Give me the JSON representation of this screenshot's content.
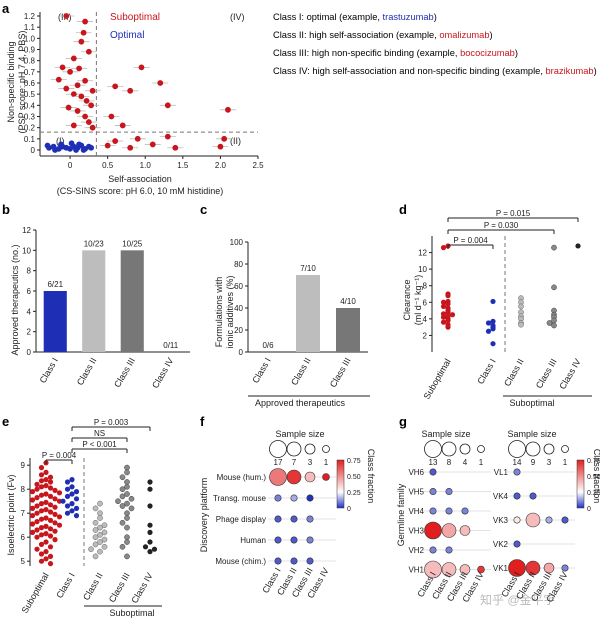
{
  "panels": {
    "a": "a",
    "b": "b",
    "c": "c",
    "d": "d",
    "e": "e",
    "f": "f",
    "g": "g"
  },
  "colors": {
    "red": "#c8161d",
    "blue": "#1f2fb5",
    "dark": "#333333",
    "mid": "#777777",
    "light": "#a8a8a8",
    "lighter": "#bdbdbd"
  },
  "legend_classes": [
    {
      "prefix": "Class I: optimal (example, ",
      "example": "trastuzumab",
      "suffix": ")",
      "color": "#1f2fb5"
    },
    {
      "prefix": "Class II: high self-association (example, ",
      "example": "omalizumab",
      "suffix": ")",
      "color": "#c8161d"
    },
    {
      "prefix": "Class III: high non-specific binding (example, ",
      "example": "bococizumab",
      "suffix": ")",
      "color": "#c8161d"
    },
    {
      "prefix": "Class IV: high self-association and non-specific binding (example, ",
      "example": "brazikumab",
      "suffix": ")",
      "color": "#c8161d"
    }
  ],
  "chart_data": [
    {
      "panel": "a",
      "type": "scatter",
      "xlabel": "Self-association",
      "xlabel2": "(CS-SINS score: pH 6.0, 10 mM histidine)",
      "ylabel": "Non-specific binding",
      "ylabel2": "(PSP score: pH 7.4, PBS)",
      "xlim": [
        -0.4,
        2.5
      ],
      "xticks": [
        "0",
        "0.5",
        "1.0",
        "1.5",
        "2.0",
        "2.5"
      ],
      "yticks": [
        "0",
        "0.1",
        "0.2",
        "0.3",
        "0.4",
        "0.5",
        "0.6",
        "0.7",
        "0.8",
        "0.9",
        "1.0",
        "1.1",
        "1.2"
      ],
      "quadrants": [
        "(I)",
        "(II)",
        "(III)",
        "(IV)"
      ],
      "series": [
        {
          "name": "Suboptimal"
        },
        {
          "name": "Optimal"
        }
      ],
      "x_threshold": 0.35,
      "y_threshold": 0.16,
      "suboptimal": [
        [
          -0.05,
          1.2
        ],
        [
          0.2,
          1.15
        ],
        [
          0.18,
          1.05
        ],
        [
          0.15,
          0.97
        ],
        [
          0.25,
          0.88
        ],
        [
          0.05,
          0.82
        ],
        [
          -0.1,
          0.74
        ],
        [
          0.12,
          0.73
        ],
        [
          0.0,
          0.7
        ],
        [
          -0.15,
          0.63
        ],
        [
          0.2,
          0.62
        ],
        [
          0.1,
          0.58
        ],
        [
          -0.05,
          0.55
        ],
        [
          0.3,
          0.53
        ],
        [
          0.05,
          0.5
        ],
        [
          0.15,
          0.48
        ],
        [
          0.22,
          0.44
        ],
        [
          0.28,
          0.4
        ],
        [
          -0.02,
          0.38
        ],
        [
          0.1,
          0.35
        ],
        [
          0.2,
          0.3
        ],
        [
          0.25,
          0.25
        ],
        [
          0.3,
          0.2
        ],
        [
          0.05,
          0.22
        ],
        [
          0.95,
          0.74
        ],
        [
          0.8,
          0.53
        ],
        [
          0.6,
          0.57
        ],
        [
          1.2,
          0.6
        ],
        [
          1.3,
          0.4
        ],
        [
          0.55,
          0.3
        ],
        [
          0.7,
          0.22
        ],
        [
          2.1,
          0.36
        ],
        [
          1.1,
          0.05
        ],
        [
          1.3,
          0.12
        ],
        [
          2.05,
          0.1
        ],
        [
          2.0,
          0.03
        ],
        [
          0.9,
          0.1
        ],
        [
          0.6,
          0.08
        ],
        [
          1.4,
          0.02
        ],
        [
          0.5,
          0.04
        ],
        [
          0.8,
          0.02
        ]
      ],
      "optimal": [
        [
          -0.28,
          0.02
        ],
        [
          -0.22,
          0.03
        ],
        [
          -0.15,
          0.01
        ],
        [
          -0.1,
          0.03
        ],
        [
          -0.05,
          0.02
        ],
        [
          0.0,
          0.01
        ],
        [
          0.05,
          0.03
        ],
        [
          0.1,
          0.02
        ],
        [
          0.15,
          0.04
        ],
        [
          0.2,
          0.01
        ],
        [
          0.25,
          0.03
        ],
        [
          -0.2,
          0.0
        ],
        [
          0.08,
          0.0
        ],
        [
          0.18,
          0.0
        ],
        [
          -0.12,
          0.05
        ],
        [
          0.02,
          0.06
        ],
        [
          0.28,
          0.02
        ],
        [
          -0.3,
          0.04
        ],
        [
          0.12,
          0.05
        ]
      ]
    },
    {
      "panel": "b",
      "type": "bar",
      "ylabel": "Approved therapeutics (no.)",
      "ylim": [
        0,
        12
      ],
      "yticks": [
        "0",
        "2",
        "4",
        "6",
        "8",
        "10",
        "12"
      ],
      "categories": [
        "Class I",
        "Class II",
        "Class III",
        "Class IV"
      ],
      "values": [
        6,
        10,
        10,
        0
      ],
      "labels": [
        "6/21",
        "10/23",
        "10/25",
        "0/11"
      ]
    },
    {
      "panel": "c",
      "type": "bar",
      "ylabel": "Formulations with",
      "ylabel2": "ionic additives (%)",
      "ylim": [
        0,
        100
      ],
      "yticks": [
        "0",
        "20",
        "40",
        "60",
        "80",
        "100"
      ],
      "categories": [
        "Class I",
        "Class II",
        "Class III"
      ],
      "values": [
        0,
        70,
        40
      ],
      "labels": [
        "0/6",
        "7/10",
        "4/10"
      ],
      "group_label": "Approved therapeutics"
    },
    {
      "panel": "d",
      "type": "scatter",
      "ylabel": "Clearance",
      "ylabel2": "(ml d⁻¹ kg⁻¹)",
      "ylim": [
        0,
        14
      ],
      "yticks": [
        "2",
        "4",
        "6",
        "8",
        "10",
        "12"
      ],
      "categories": [
        "Suboptimal",
        "Class I",
        "Class II",
        "Class III",
        "Class IV"
      ],
      "group_label": "Suboptimal",
      "pvals": [
        "P = 0.004",
        "P = 0.030",
        "P = 0.015"
      ],
      "groups": [
        [
          12.8,
          12.6,
          7.0,
          6.8,
          6.1,
          6.0,
          5.8,
          5.5,
          5.3,
          5.0,
          4.8,
          4.6,
          4.5,
          4.3,
          4.2,
          4.0,
          3.8,
          3.6,
          3.3,
          3.0
        ],
        [
          6.1,
          3.7,
          3.5,
          3.2,
          3.0,
          2.8,
          2.5,
          1.0
        ],
        [
          6.5,
          6.0,
          5.5,
          4.8,
          4.3,
          4.0,
          3.5,
          3.3
        ],
        [
          12.6,
          7.8,
          5.0,
          4.5,
          4.2,
          3.8,
          3.5,
          3.2
        ],
        [
          12.8
        ]
      ]
    },
    {
      "panel": "e",
      "type": "scatter",
      "ylabel": "Isoelectric point (Fv)",
      "ylim": [
        4.8,
        9.3
      ],
      "yticks": [
        "5",
        "6",
        "7",
        "8",
        "9"
      ],
      "categories": [
        "Suboptimal",
        "Class I",
        "Class II",
        "Class III",
        "Class IV"
      ],
      "group_label": "Suboptimal",
      "pvals": [
        "P = 0.004",
        "P < 0.001",
        "NS",
        "P = 0.003"
      ],
      "groups": [
        [
          9.1,
          8.9,
          8.7,
          8.6,
          8.5,
          8.4,
          8.35,
          8.3,
          8.2,
          8.15,
          8.1,
          8.05,
          8.0,
          7.95,
          7.9,
          7.85,
          7.8,
          7.75,
          7.7,
          7.65,
          7.6,
          7.55,
          7.5,
          7.45,
          7.4,
          7.35,
          7.3,
          7.25,
          7.2,
          7.15,
          7.1,
          7.05,
          7.0,
          6.95,
          6.9,
          6.85,
          6.8,
          6.75,
          6.7,
          6.65,
          6.6,
          6.55,
          6.5,
          6.45,
          6.4,
          6.35,
          6.3,
          6.25,
          6.2,
          6.15,
          6.1,
          6.05,
          6.0,
          5.9,
          5.8,
          5.7,
          5.6,
          5.5,
          5.4,
          5.3,
          5.2,
          5.1,
          5.0,
          4.9
        ],
        [
          8.4,
          8.3,
          8.1,
          8.0,
          7.9,
          7.8,
          7.7,
          7.6,
          7.5,
          7.4,
          7.3,
          7.2,
          7.1,
          7.0,
          6.9
        ],
        [
          7.4,
          7.2,
          7.0,
          6.8,
          6.6,
          6.5,
          6.4,
          6.3,
          6.2,
          6.1,
          6.0,
          5.9,
          5.8,
          5.7,
          5.6,
          5.5,
          5.4,
          5.2
        ],
        [
          8.9,
          8.7,
          8.5,
          8.3,
          8.1,
          8.0,
          7.8,
          7.7,
          7.6,
          7.5,
          7.4,
          7.3,
          7.2,
          7.0,
          6.8,
          6.6,
          6.4,
          6.0,
          5.8,
          5.6,
          5.2
        ],
        [
          8.3,
          8.0,
          7.3,
          6.5,
          6.2,
          5.8,
          5.6,
          5.5,
          5.4
        ]
      ]
    },
    {
      "panel": "f",
      "type": "heatmap",
      "title": "Sample size",
      "ylabel": "Discovery platform",
      "colorbar_label": "Class fraction",
      "colorbar_ticks": [
        "0",
        "0.25",
        "0.50",
        "0.75"
      ],
      "rows": [
        "Mouse (hum.)",
        "Transg. mouse",
        "Phage display",
        "Human",
        "Mouse (chim.)"
      ],
      "columns": [
        "Class I",
        "Class II",
        "Class III",
        "Class IV"
      ],
      "sample_sizes": [
        "17",
        "7",
        "3",
        "1"
      ],
      "values": [
        [
          0.55,
          0.7,
          0.4,
          0.75
        ],
        [
          0.1,
          0.15,
          0.0,
          null
        ],
        [
          0.05,
          0.05,
          0.1,
          null
        ],
        [
          0.05,
          0.05,
          0.1,
          null
        ],
        [
          0.05,
          0.05,
          0.05,
          null
        ]
      ]
    },
    {
      "panel": "g",
      "type": "heatmap",
      "title": "Sample size",
      "ylabel": "Germline family",
      "colorbar_label": "Class fraction",
      "colorbar_ticks": [
        "0",
        "0.25",
        "0.50",
        "0.75"
      ],
      "heavy": {
        "rows": [
          "VH6",
          "VH5",
          "VH4",
          "VH3",
          "VH2",
          "VH1"
        ],
        "sample_sizes": [
          "13",
          "8",
          "4",
          "1"
        ],
        "values": [
          [
            0.05,
            null,
            null,
            null
          ],
          [
            0.1,
            0.1,
            null,
            null
          ],
          [
            0.1,
            0.1,
            0.1,
            null
          ],
          [
            0.75,
            0.45,
            0.4,
            null
          ],
          [
            0.1,
            0.1,
            null,
            null
          ],
          [
            0.4,
            0.4,
            0.4,
            0.7
          ]
        ]
      },
      "light": {
        "rows": [
          "VL1",
          "VK4",
          "VK3",
          "VK2",
          "VK1"
        ],
        "sample_sizes": [
          "14",
          "9",
          "3",
          "1"
        ],
        "values": [
          [
            0.1,
            null,
            null,
            null
          ],
          [
            0.05,
            0.05,
            null,
            null
          ],
          [
            0.3,
            0.4,
            0.15,
            0.05
          ],
          [
            0.05,
            null,
            null,
            null
          ],
          [
            0.75,
            0.7,
            0.45,
            0.1
          ]
        ]
      },
      "columns": [
        "Class I",
        "Class II",
        "Class III",
        "Class IV"
      ]
    }
  ],
  "watermark": "知乎 @金平宇"
}
